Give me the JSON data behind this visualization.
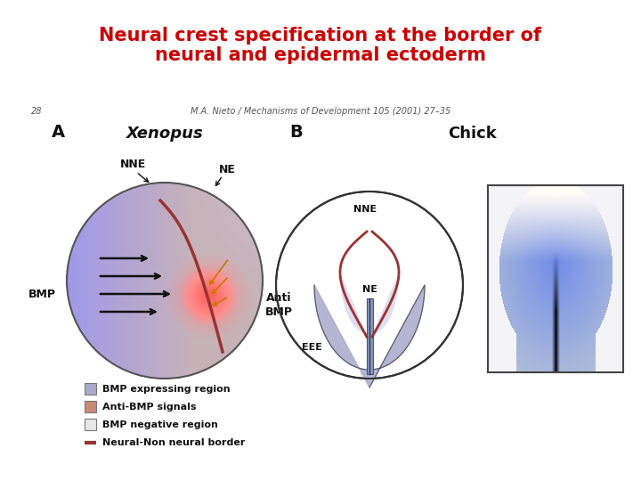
{
  "title_line1": "Neural crest specification at the border of",
  "title_line2": "neural and epidermal ectoderm",
  "title_color": "#cc0000",
  "title_fontsize": 15,
  "background_color": "#ffffff",
  "page_number": "28",
  "citation": "M.A. Nieto / Mechanisms of Development 105 (2001) 27–35",
  "panel_a_label": "A",
  "panel_b_label": "B",
  "xenopus_label": "Xenopus",
  "chick_label": "Chick",
  "nne_label_a": "NNE",
  "ne_label_a": "NE",
  "bmp_label_a": "BMP",
  "anti_bmp_label_1": "Anti",
  "anti_bmp_label_2": "BMP",
  "nne_label_b": "NNE",
  "ne_label_b": "NE",
  "eee_label_b": "EEE",
  "legend_items": [
    {
      "color": "#aaaacc",
      "label": "BMP expressing region",
      "line": false
    },
    {
      "color": "#cc8877",
      "label": "Anti-BMP signals",
      "line": false
    },
    {
      "color": "#e8e8e8",
      "label": "BMP negative region",
      "line": false
    },
    {
      "color": "#993333",
      "label": "Neural-Non neural border",
      "line": true
    }
  ],
  "bmp_color_left": "#8888bb",
  "bmp_color_right": "#cc9988",
  "anti_bmp_color": "#cc5544",
  "ne_color": "#e8e4f0",
  "chick_nne_color": "#aaaacc",
  "chick_ne_color": "#e0ddf0",
  "chick_tube_color": "#8899bb",
  "red_border_color": "#993333",
  "arrow_color": "#222222"
}
